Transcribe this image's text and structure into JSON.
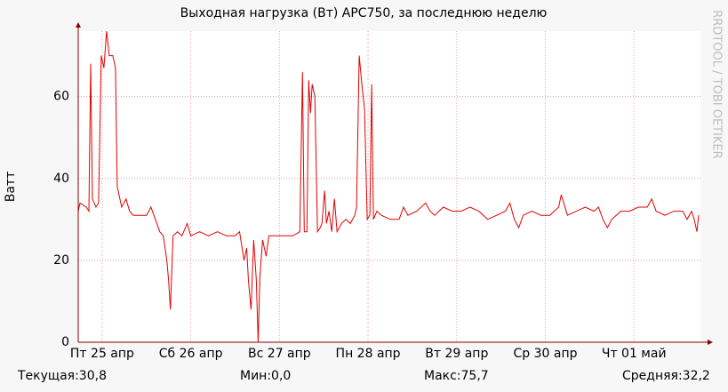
{
  "chart_data": {
    "type": "line",
    "title": "Выходная нагрузка (Вт) APC750, за последнюю неделю",
    "y_label": "Ватт",
    "watermark": "RRDTOOL / TOBI OETIKER",
    "stats": [
      "Текущая:30,8",
      "Мин:0,0",
      "Макс:75,7",
      "Средняя:32,2"
    ],
    "xlim": [
      -0.27,
      6.75
    ],
    "xticks": [
      {
        "value": 0,
        "label": "Пт 25 апр"
      },
      {
        "value": 1,
        "label": "Сб 26 апр"
      },
      {
        "value": 2,
        "label": "Вс 27 апр"
      },
      {
        "value": 3,
        "label": "Пн 28 апр"
      },
      {
        "value": 4,
        "label": "Вт 29 апр"
      },
      {
        "value": 5,
        "label": "Ср 30 апр"
      },
      {
        "value": 6,
        "label": "Чт 01 май"
      }
    ],
    "ylim": [
      0,
      76
    ],
    "yticks": [
      0,
      20,
      40,
      60
    ],
    "grid": true,
    "color": "#e00000",
    "x": [
      -0.27,
      -0.25,
      -0.18,
      -0.15,
      -0.13,
      -0.11,
      -0.07,
      -0.04,
      -0.01,
      0.02,
      0.05,
      0.08,
      0.12,
      0.15,
      0.17,
      0.22,
      0.27,
      0.31,
      0.35,
      0.45,
      0.5,
      0.55,
      0.6,
      0.65,
      0.69,
      0.73,
      0.75,
      0.77,
      0.8,
      0.85,
      0.9,
      0.96,
      1.0,
      1.1,
      1.2,
      1.3,
      1.4,
      1.5,
      1.55,
      1.6,
      1.63,
      1.65,
      1.68,
      1.71,
      1.74,
      1.76,
      1.78,
      1.81,
      1.85,
      1.88,
      1.95,
      2.05,
      2.15,
      2.23,
      2.26,
      2.28,
      2.31,
      2.33,
      2.35,
      2.37,
      2.4,
      2.43,
      2.46,
      2.48,
      2.51,
      2.53,
      2.56,
      2.59,
      2.62,
      2.65,
      2.7,
      2.75,
      2.8,
      2.85,
      2.87,
      2.9,
      2.93,
      2.96,
      2.99,
      3.02,
      3.04,
      3.06,
      3.1,
      3.15,
      3.25,
      3.35,
      3.4,
      3.45,
      3.55,
      3.65,
      3.7,
      3.75,
      3.85,
      3.95,
      4.05,
      4.15,
      4.25,
      4.35,
      4.45,
      4.55,
      4.6,
      4.65,
      4.7,
      4.75,
      4.85,
      4.95,
      5.05,
      5.15,
      5.18,
      5.25,
      5.35,
      5.45,
      5.55,
      5.6,
      5.65,
      5.7,
      5.75,
      5.85,
      5.95,
      6.05,
      6.15,
      6.2,
      6.25,
      6.35,
      6.45,
      6.55,
      6.6,
      6.65,
      6.68,
      6.71,
      6.73
    ],
    "values": [
      32,
      34,
      33,
      32,
      68,
      35,
      33,
      34,
      70,
      67,
      76,
      70,
      70,
      67,
      38,
      33,
      35,
      32,
      31,
      31,
      31,
      33,
      30,
      27,
      26,
      20,
      15,
      8,
      26,
      27,
      26,
      29,
      26,
      27,
      26,
      27,
      26,
      26,
      27,
      20,
      23,
      15,
      8,
      25,
      15,
      0,
      16,
      25,
      21,
      26,
      26,
      26,
      26,
      27,
      66,
      27,
      27,
      64,
      56,
      63,
      60,
      27,
      28,
      29,
      37,
      29,
      32,
      27,
      35,
      27,
      29,
      30,
      29,
      31,
      33,
      70,
      63,
      57,
      30,
      31,
      63,
      30,
      32,
      31,
      30,
      30,
      33,
      31,
      32,
      34,
      32,
      31,
      33,
      32,
      32,
      33,
      32,
      30,
      31,
      32,
      34,
      30,
      28,
      31,
      32,
      31,
      31,
      33,
      36,
      31,
      32,
      33,
      32,
      33,
      30,
      28,
      30,
      32,
      32,
      33,
      33,
      35,
      32,
      31,
      32,
      32,
      30,
      32,
      30,
      27,
      31
    ]
  }
}
